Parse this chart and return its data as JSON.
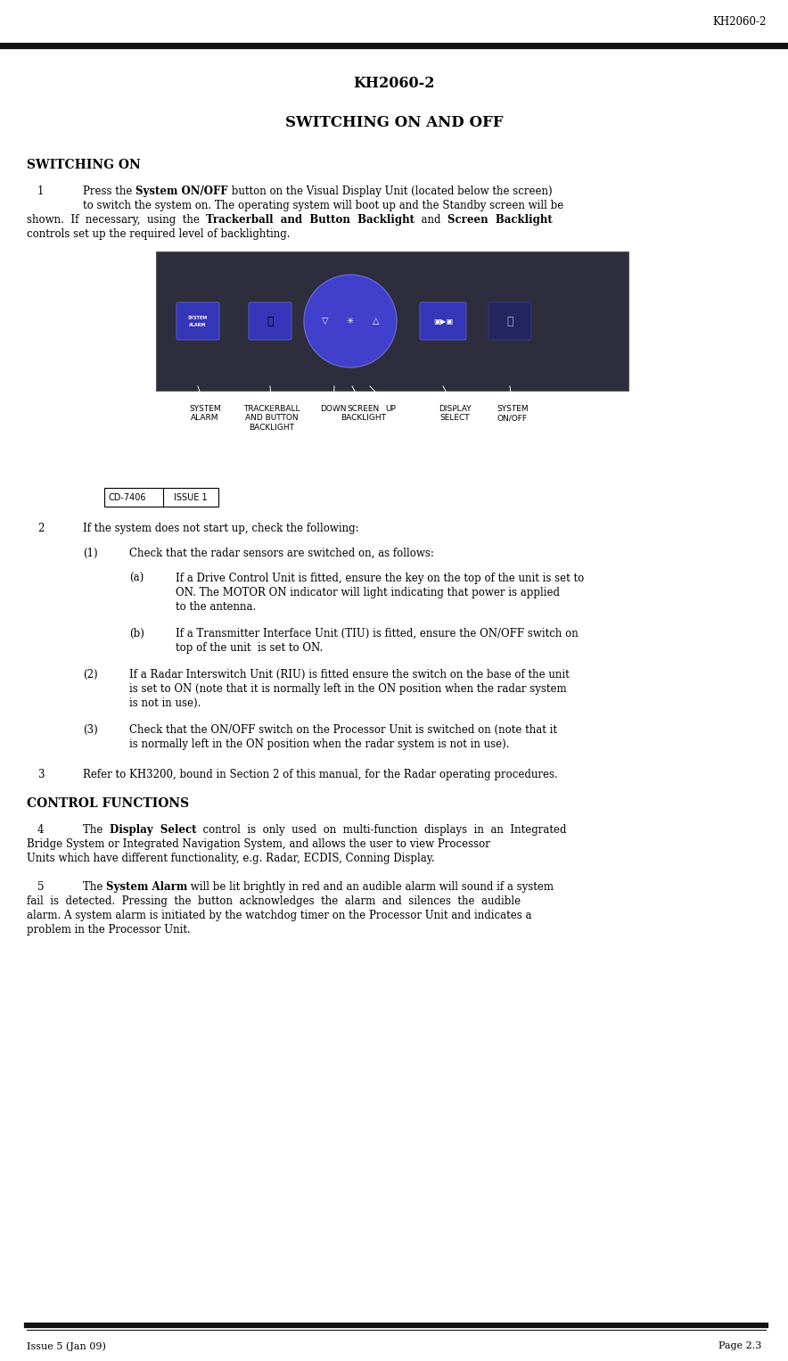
{
  "page_header": "KH2060-2",
  "title": "KH2060-2",
  "subtitle": "SWITCHING ON AND OFF",
  "section1_heading": "SWITCHING ON",
  "section2_heading": "CONTROL FUNCTIONS",
  "footer_left": "Issue 5 (Jan 09)",
  "footer_right": "Page 2.3",
  "cd_label": "CD-7406",
  "issue_label": "ISSUE 1",
  "bg_color": "#ffffff",
  "text_color": "#000000",
  "panel_bg": "#2d2d3d",
  "btn_color": "#3535b8",
  "btn_large_color": "#4040cc",
  "btn_dark_color": "#252560"
}
